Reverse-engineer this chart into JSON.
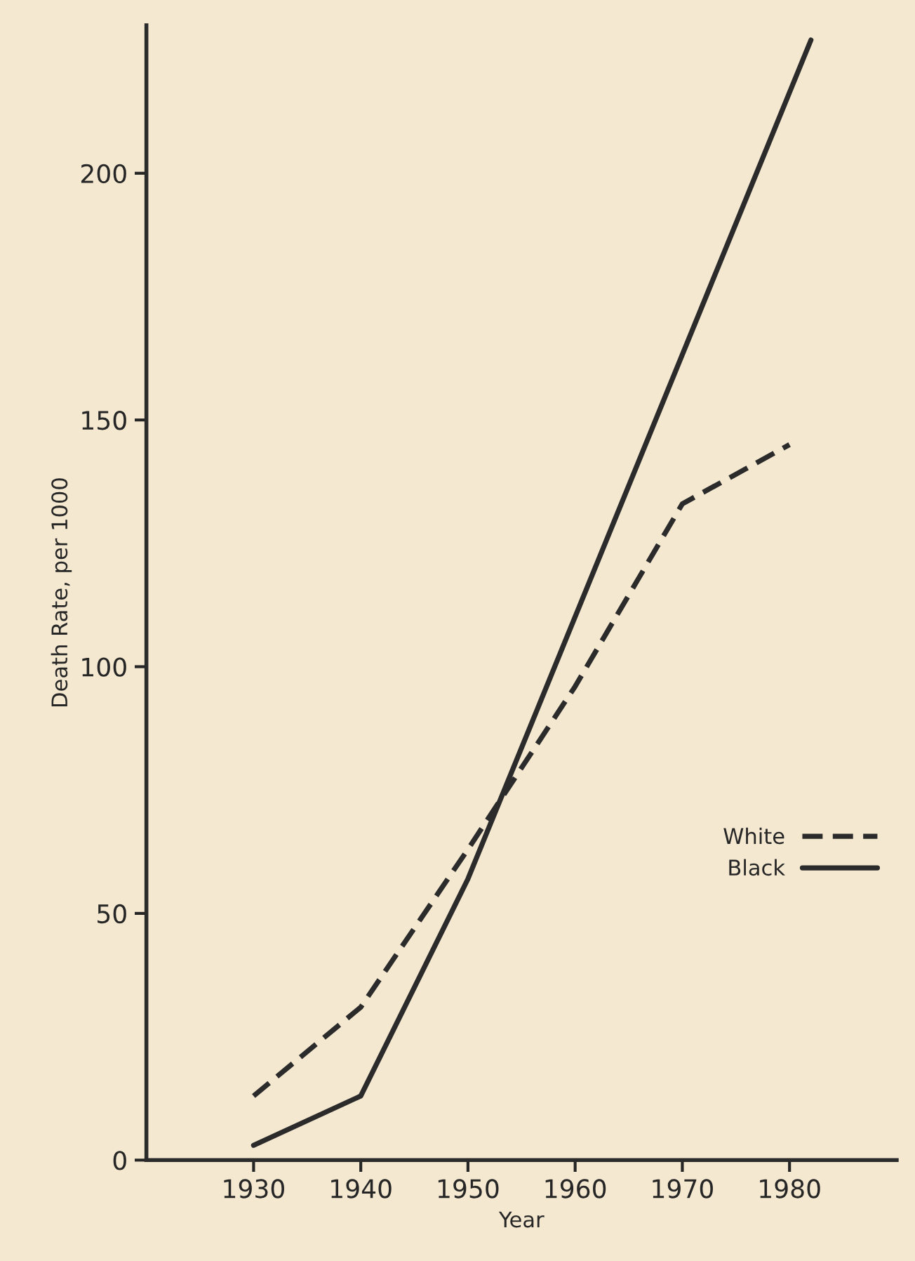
{
  "chart_data": {
    "type": "line",
    "xlabel": "Year",
    "ylabel": "Death Rate, per 1000",
    "xlim": [
      1920,
      1990
    ],
    "xticks": [
      1930,
      1940,
      1950,
      1960,
      1970,
      1980
    ],
    "ylim": [
      0,
      230
    ],
    "yticks": [
      0,
      50,
      100,
      150,
      200
    ],
    "grid": false,
    "legend": "right",
    "marker": "none",
    "series": [
      {
        "name": "White",
        "color": "#2b2b2b",
        "line_style": "dashed",
        "x": [
          1930,
          1940,
          1950,
          1960,
          1970,
          1980
        ],
        "values": [
          13,
          31,
          63,
          96,
          133,
          145
        ]
      },
      {
        "name": "Black",
        "color": "#2b2b2b",
        "line_style": "solid",
        "x": [
          1930,
          1940,
          1950,
          1982
        ],
        "values": [
          3,
          13,
          57,
          227
        ]
      }
    ]
  }
}
